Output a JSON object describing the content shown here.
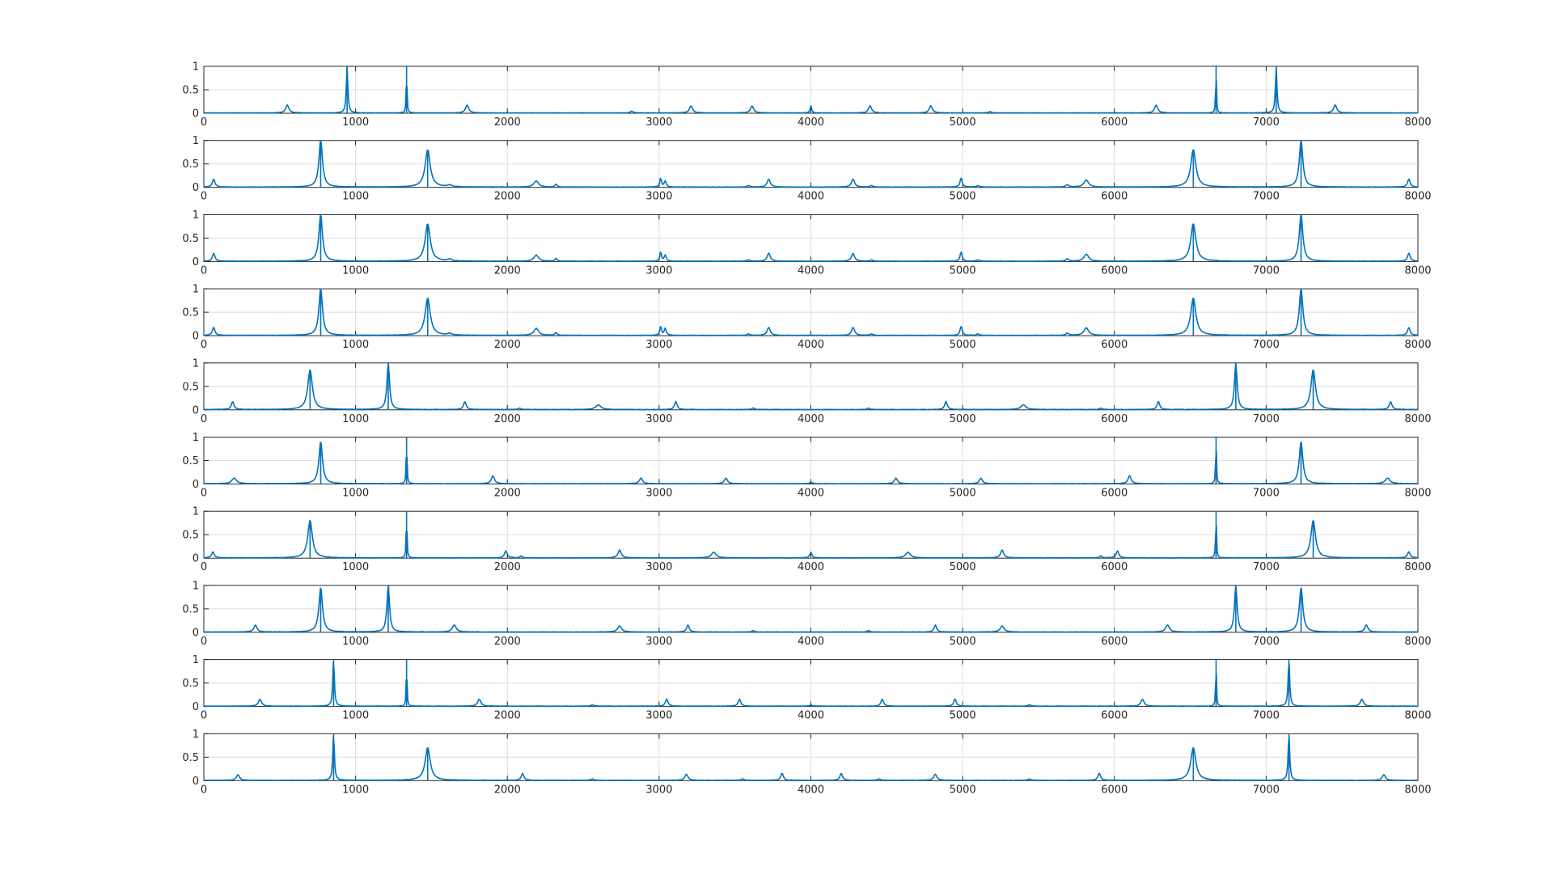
{
  "figure": {
    "background": "#ffffff",
    "axis_color": "#262626",
    "grid_color": "#dcdcdc",
    "line_color": "#0072BD"
  },
  "chart_data": [
    {
      "type": "line",
      "xlim": [
        0,
        8000
      ],
      "ylim": [
        0,
        1
      ],
      "grid": true,
      "xticks": [
        "0",
        "1000",
        "2000",
        "3000",
        "4000",
        "5000",
        "6000",
        "7000",
        "8000"
      ],
      "yticks": [
        "0",
        "0.5",
        "1"
      ],
      "peaks": [
        [
          550,
          0.17,
          12
        ],
        [
          944,
          1.0,
          6
        ],
        [
          1336,
          1.0,
          3
        ],
        [
          1735,
          0.17,
          12
        ],
        [
          2820,
          0.04,
          10
        ],
        [
          3210,
          0.15,
          12
        ],
        [
          3612,
          0.15,
          12
        ],
        [
          4000,
          0.15,
          6
        ],
        [
          4390,
          0.15,
          12
        ],
        [
          4790,
          0.15,
          12
        ],
        [
          5180,
          0.03,
          10
        ],
        [
          6275,
          0.17,
          12
        ],
        [
          6670,
          1.0,
          3
        ],
        [
          7066,
          1.0,
          6
        ],
        [
          7455,
          0.17,
          12
        ]
      ]
    },
    {
      "type": "line",
      "xlim": [
        0,
        8000
      ],
      "ylim": [
        0,
        1
      ],
      "grid": true,
      "xticks": [
        "0",
        "1000",
        "2000",
        "3000",
        "4000",
        "5000",
        "6000",
        "7000",
        "8000"
      ],
      "yticks": [
        "0",
        "0.5",
        "1"
      ],
      "peaks": [
        [
          65,
          0.17,
          10
        ],
        [
          770,
          1.0,
          14
        ],
        [
          1475,
          0.8,
          20
        ],
        [
          1620,
          0.04,
          15
        ],
        [
          2190,
          0.13,
          18
        ],
        [
          2320,
          0.06,
          8
        ],
        [
          3010,
          0.2,
          6
        ],
        [
          3040,
          0.13,
          8
        ],
        [
          3590,
          0.03,
          10
        ],
        [
          3722,
          0.17,
          12
        ],
        [
          4278,
          0.17,
          12
        ],
        [
          4400,
          0.03,
          10
        ],
        [
          4990,
          0.2,
          8
        ],
        [
          5100,
          0.03,
          10
        ],
        [
          5690,
          0.05,
          10
        ],
        [
          5815,
          0.15,
          18
        ],
        [
          6520,
          0.8,
          20
        ],
        [
          7230,
          1.0,
          14
        ],
        [
          7940,
          0.17,
          10
        ]
      ]
    },
    {
      "type": "line",
      "xlim": [
        0,
        8000
      ],
      "ylim": [
        0,
        1
      ],
      "grid": true,
      "xticks": [
        "0",
        "1000",
        "2000",
        "3000",
        "4000",
        "5000",
        "6000",
        "7000",
        "8000"
      ],
      "yticks": [
        "0",
        "0.5",
        "1"
      ],
      "peaks": [
        [
          65,
          0.17,
          10
        ],
        [
          770,
          1.0,
          14
        ],
        [
          1475,
          0.8,
          20
        ],
        [
          1620,
          0.04,
          15
        ],
        [
          2190,
          0.13,
          18
        ],
        [
          2320,
          0.06,
          8
        ],
        [
          3010,
          0.2,
          6
        ],
        [
          3040,
          0.13,
          8
        ],
        [
          3590,
          0.03,
          10
        ],
        [
          3722,
          0.17,
          12
        ],
        [
          4278,
          0.17,
          12
        ],
        [
          4400,
          0.03,
          10
        ],
        [
          4990,
          0.2,
          8
        ],
        [
          5100,
          0.03,
          10
        ],
        [
          5690,
          0.05,
          10
        ],
        [
          5815,
          0.15,
          18
        ],
        [
          6520,
          0.8,
          20
        ],
        [
          7230,
          1.0,
          14
        ],
        [
          7940,
          0.17,
          10
        ]
      ]
    },
    {
      "type": "line",
      "xlim": [
        0,
        8000
      ],
      "ylim": [
        0,
        1
      ],
      "grid": true,
      "xticks": [
        "0",
        "1000",
        "2000",
        "3000",
        "4000",
        "5000",
        "6000",
        "7000",
        "8000"
      ],
      "yticks": [
        "0",
        "0.5",
        "1"
      ],
      "peaks": [
        [
          65,
          0.17,
          10
        ],
        [
          770,
          1.0,
          14
        ],
        [
          1475,
          0.8,
          20
        ],
        [
          1620,
          0.04,
          15
        ],
        [
          2190,
          0.15,
          18
        ],
        [
          2320,
          0.06,
          8
        ],
        [
          3010,
          0.2,
          6
        ],
        [
          3040,
          0.15,
          8
        ],
        [
          3590,
          0.03,
          10
        ],
        [
          3722,
          0.17,
          12
        ],
        [
          4278,
          0.17,
          12
        ],
        [
          4400,
          0.03,
          10
        ],
        [
          4990,
          0.2,
          8
        ],
        [
          5100,
          0.03,
          10
        ],
        [
          5690,
          0.05,
          10
        ],
        [
          5815,
          0.16,
          18
        ],
        [
          6520,
          0.8,
          20
        ],
        [
          7230,
          1.0,
          14
        ],
        [
          7940,
          0.17,
          10
        ]
      ]
    },
    {
      "type": "line",
      "xlim": [
        0,
        8000
      ],
      "ylim": [
        0,
        1
      ],
      "grid": true,
      "xticks": [
        "0",
        "1000",
        "2000",
        "3000",
        "4000",
        "5000",
        "6000",
        "7000",
        "8000"
      ],
      "yticks": [
        "0",
        "0.5",
        "1"
      ],
      "peaks": [
        [
          190,
          0.17,
          10
        ],
        [
          700,
          0.85,
          18
        ],
        [
          1215,
          1.0,
          10
        ],
        [
          1720,
          0.17,
          10
        ],
        [
          2080,
          0.03,
          10
        ],
        [
          2600,
          0.1,
          20
        ],
        [
          3110,
          0.17,
          10
        ],
        [
          3620,
          0.03,
          10
        ],
        [
          4380,
          0.03,
          10
        ],
        [
          4890,
          0.17,
          10
        ],
        [
          5400,
          0.1,
          20
        ],
        [
          5910,
          0.03,
          10
        ],
        [
          6290,
          0.17,
          10
        ],
        [
          6800,
          1.0,
          10
        ],
        [
          7310,
          0.85,
          18
        ],
        [
          7820,
          0.17,
          10
        ]
      ]
    },
    {
      "type": "line",
      "xlim": [
        0,
        8000
      ],
      "ylim": [
        0,
        1
      ],
      "grid": true,
      "xticks": [
        "0",
        "1000",
        "2000",
        "3000",
        "4000",
        "5000",
        "6000",
        "7000",
        "8000"
      ],
      "yticks": [
        "0",
        "0.5",
        "1"
      ],
      "peaks": [
        [
          200,
          0.12,
          18
        ],
        [
          770,
          0.9,
          14
        ],
        [
          1336,
          1.0,
          3
        ],
        [
          1905,
          0.17,
          12
        ],
        [
          2880,
          0.12,
          12
        ],
        [
          3440,
          0.12,
          12
        ],
        [
          4000,
          0.04,
          8
        ],
        [
          4560,
          0.12,
          12
        ],
        [
          5120,
          0.12,
          12
        ],
        [
          6100,
          0.17,
          12
        ],
        [
          6670,
          1.0,
          3
        ],
        [
          7230,
          0.9,
          14
        ],
        [
          7800,
          0.12,
          18
        ]
      ]
    },
    {
      "type": "line",
      "xlim": [
        0,
        8000
      ],
      "ylim": [
        0,
        1
      ],
      "grid": true,
      "xticks": [
        "0",
        "1000",
        "2000",
        "3000",
        "4000",
        "5000",
        "6000",
        "7000",
        "8000"
      ],
      "yticks": [
        "0",
        "0.5",
        "1"
      ],
      "peaks": [
        [
          60,
          0.13,
          10
        ],
        [
          700,
          0.8,
          18
        ],
        [
          1336,
          1.0,
          3
        ],
        [
          1990,
          0.15,
          10
        ],
        [
          2090,
          0.04,
          8
        ],
        [
          2740,
          0.17,
          12
        ],
        [
          3360,
          0.12,
          18
        ],
        [
          4000,
          0.12,
          8
        ],
        [
          4640,
          0.12,
          18
        ],
        [
          5260,
          0.17,
          12
        ],
        [
          5910,
          0.04,
          8
        ],
        [
          6020,
          0.15,
          10
        ],
        [
          6670,
          1.0,
          3
        ],
        [
          7310,
          0.8,
          18
        ],
        [
          7940,
          0.13,
          10
        ]
      ]
    },
    {
      "type": "line",
      "xlim": [
        0,
        8000
      ],
      "ylim": [
        0,
        1
      ],
      "grid": true,
      "xticks": [
        "0",
        "1000",
        "2000",
        "3000",
        "4000",
        "5000",
        "6000",
        "7000",
        "8000"
      ],
      "yticks": [
        "0",
        "0.5",
        "1"
      ],
      "peaks": [
        [
          340,
          0.15,
          12
        ],
        [
          770,
          0.95,
          14
        ],
        [
          1215,
          1.0,
          10
        ],
        [
          1650,
          0.15,
          15
        ],
        [
          2740,
          0.13,
          15
        ],
        [
          3190,
          0.15,
          10
        ],
        [
          3620,
          0.03,
          10
        ],
        [
          4380,
          0.03,
          10
        ],
        [
          4820,
          0.15,
          10
        ],
        [
          5260,
          0.13,
          15
        ],
        [
          6350,
          0.15,
          15
        ],
        [
          6800,
          1.0,
          10
        ],
        [
          7230,
          0.95,
          14
        ],
        [
          7660,
          0.15,
          12
        ]
      ]
    },
    {
      "type": "line",
      "xlim": [
        0,
        8000
      ],
      "ylim": [
        0,
        1
      ],
      "grid": true,
      "xticks": [
        "0",
        "1000",
        "2000",
        "3000",
        "4000",
        "5000",
        "6000",
        "7000",
        "8000"
      ],
      "yticks": [
        "0",
        "0.5",
        "1"
      ],
      "peaks": [
        [
          370,
          0.15,
          12
        ],
        [
          855,
          1.0,
          6
        ],
        [
          1336,
          1.0,
          3
        ],
        [
          1815,
          0.15,
          12
        ],
        [
          2560,
          0.03,
          10
        ],
        [
          3050,
          0.15,
          10
        ],
        [
          3530,
          0.15,
          10
        ],
        [
          4000,
          0.03,
          8
        ],
        [
          4470,
          0.15,
          10
        ],
        [
          4950,
          0.15,
          10
        ],
        [
          5440,
          0.03,
          10
        ],
        [
          6185,
          0.15,
          12
        ],
        [
          6670,
          1.0,
          3
        ],
        [
          7150,
          1.0,
          6
        ],
        [
          7630,
          0.15,
          12
        ]
      ]
    },
    {
      "type": "line",
      "xlim": [
        0,
        8000
      ],
      "ylim": [
        0,
        1
      ],
      "grid": true,
      "xticks": [
        "0",
        "1000",
        "2000",
        "3000",
        "4000",
        "5000",
        "6000",
        "7000",
        "8000"
      ],
      "yticks": [
        "0",
        "0.5",
        "1"
      ],
      "peaks": [
        [
          225,
          0.12,
          12
        ],
        [
          855,
          1.0,
          6
        ],
        [
          1475,
          0.7,
          20
        ],
        [
          2100,
          0.15,
          10
        ],
        [
          2560,
          0.03,
          10
        ],
        [
          3180,
          0.13,
          12
        ],
        [
          3550,
          0.03,
          10
        ],
        [
          3810,
          0.15,
          10
        ],
        [
          4200,
          0.15,
          10
        ],
        [
          4450,
          0.03,
          10
        ],
        [
          4820,
          0.13,
          12
        ],
        [
          5440,
          0.03,
          10
        ],
        [
          5900,
          0.15,
          10
        ],
        [
          6520,
          0.7,
          20
        ],
        [
          7150,
          1.0,
          6
        ],
        [
          7775,
          0.12,
          12
        ]
      ]
    }
  ]
}
